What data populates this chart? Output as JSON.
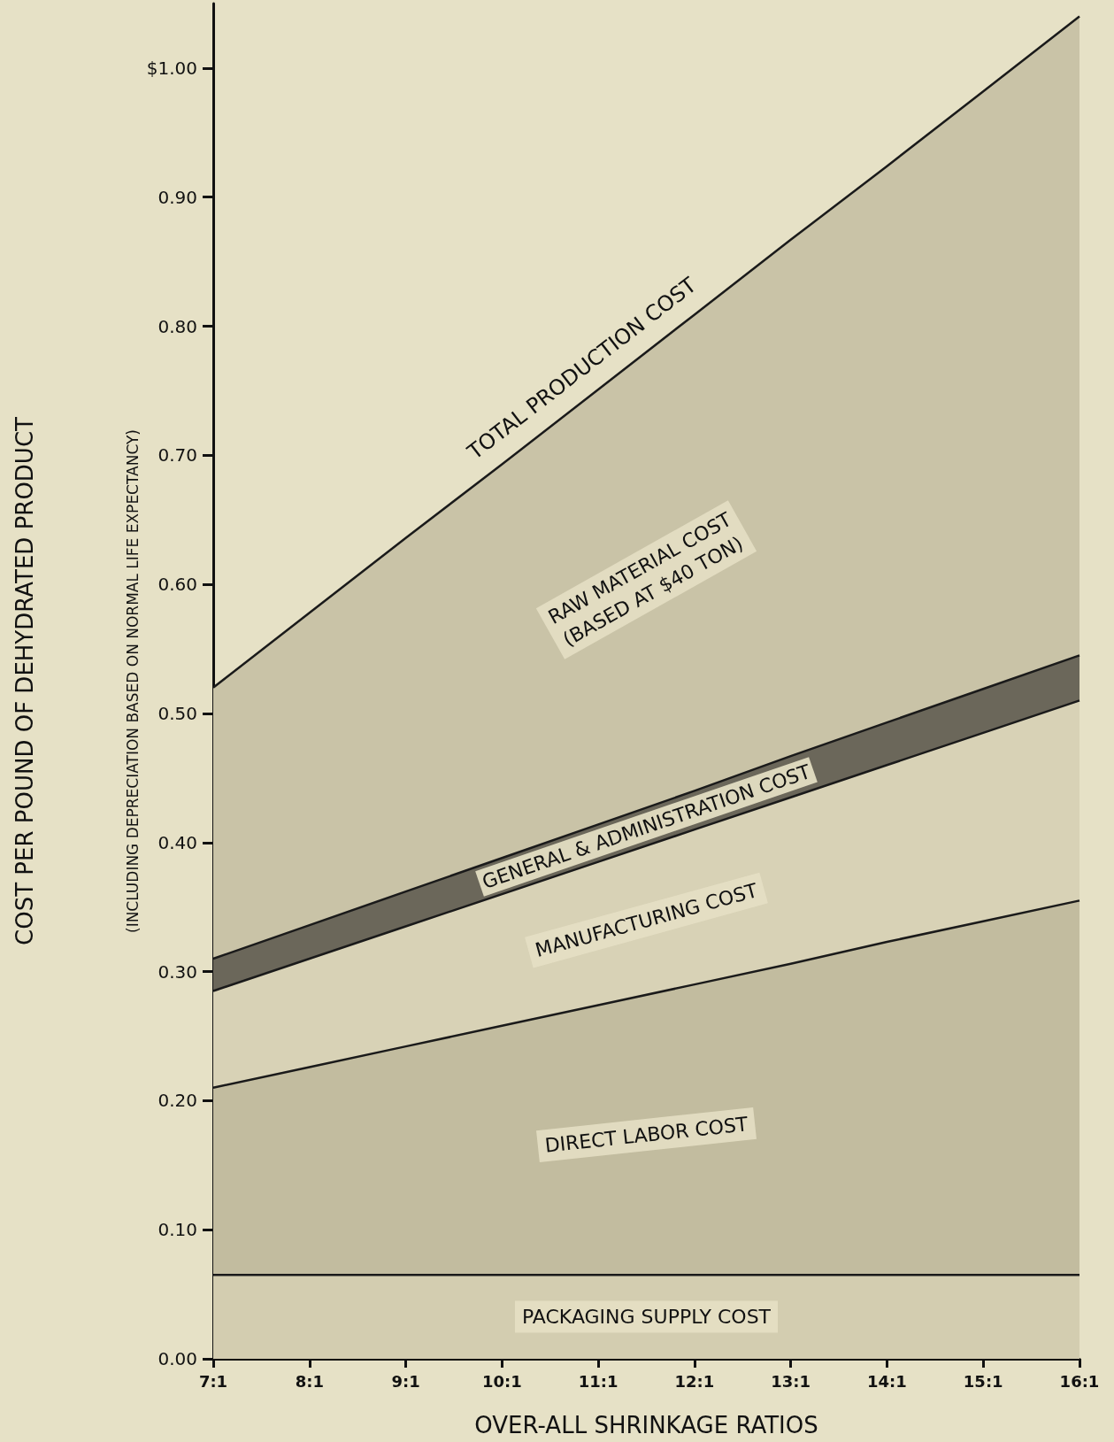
{
  "chart_data": {
    "type": "area",
    "stacked": true,
    "legend": false,
    "grid": false,
    "marker": "none",
    "xlabel": "OVER-ALL SHRINKAGE RATIOS",
    "ylabel": "COST PER POUND OF DEHYDRATED PRODUCT",
    "categories": [
      "7:1",
      "8:1",
      "9:1",
      "10:1",
      "11:1",
      "12:1",
      "13:1",
      "14:1",
      "15:1",
      "16:1"
    ],
    "ylim": [
      0,
      1.05
    ],
    "yticks": [
      {
        "value": 0,
        "label": "0.00"
      },
      {
        "value": 0.1,
        "label": "0.10"
      },
      {
        "value": 0.2,
        "label": "0.20"
      },
      {
        "value": 0.3,
        "label": "0.30"
      },
      {
        "value": 0.4,
        "label": "0.40"
      },
      {
        "value": 0.5,
        "label": "0.50"
      },
      {
        "value": 0.6,
        "label": "0.60"
      },
      {
        "value": 0.7,
        "label": "0.70"
      },
      {
        "value": 0.8,
        "label": "0.80"
      },
      {
        "value": 0.9,
        "label": "0.90"
      },
      {
        "value": 1,
        "label": "$1.00"
      }
    ],
    "series": [
      {
        "name": "PACKAGING SUPPLY COST",
        "color": "#d3cdb0",
        "values": [
          0.065,
          0.065,
          0.065,
          0.065,
          0.065,
          0.065,
          0.065,
          0.065,
          0.065,
          0.065
        ]
      },
      {
        "name": "DIRECT LABOR COST",
        "color": "#c2bc9f",
        "values": [
          0.145,
          0.161,
          0.177,
          0.193,
          0.209,
          0.225,
          0.241,
          0.258,
          0.274,
          0.29
        ]
      },
      {
        "name": "MANUFACTURING COST",
        "color": "#d8d2b6",
        "values": [
          0.075,
          0.084,
          0.093,
          0.102,
          0.111,
          0.12,
          0.129,
          0.137,
          0.146,
          0.155
        ]
      },
      {
        "name": "GENERAL & ADMINISTRATION COST",
        "color": "#6b675a",
        "values": [
          0.025,
          0.026,
          0.027,
          0.028,
          0.029,
          0.03,
          0.032,
          0.033,
          0.034,
          0.035
        ]
      },
      {
        "name": "RAW MATERIAL COST\n(BASED AT $40 TON)",
        "color": "#c9c3a7",
        "values": [
          0.21,
          0.242,
          0.274,
          0.305,
          0.337,
          0.369,
          0.4,
          0.431,
          0.463,
          0.495
        ]
      }
    ],
    "annotations": [
      {
        "text": "TOTAL PRODUCTION COST",
        "x": "11:1",
        "y": 0.751
      },
      "(INCLUDING DEPRECIATION BASED ON NORMAL LIFE EXPECTANCY)"
    ]
  }
}
